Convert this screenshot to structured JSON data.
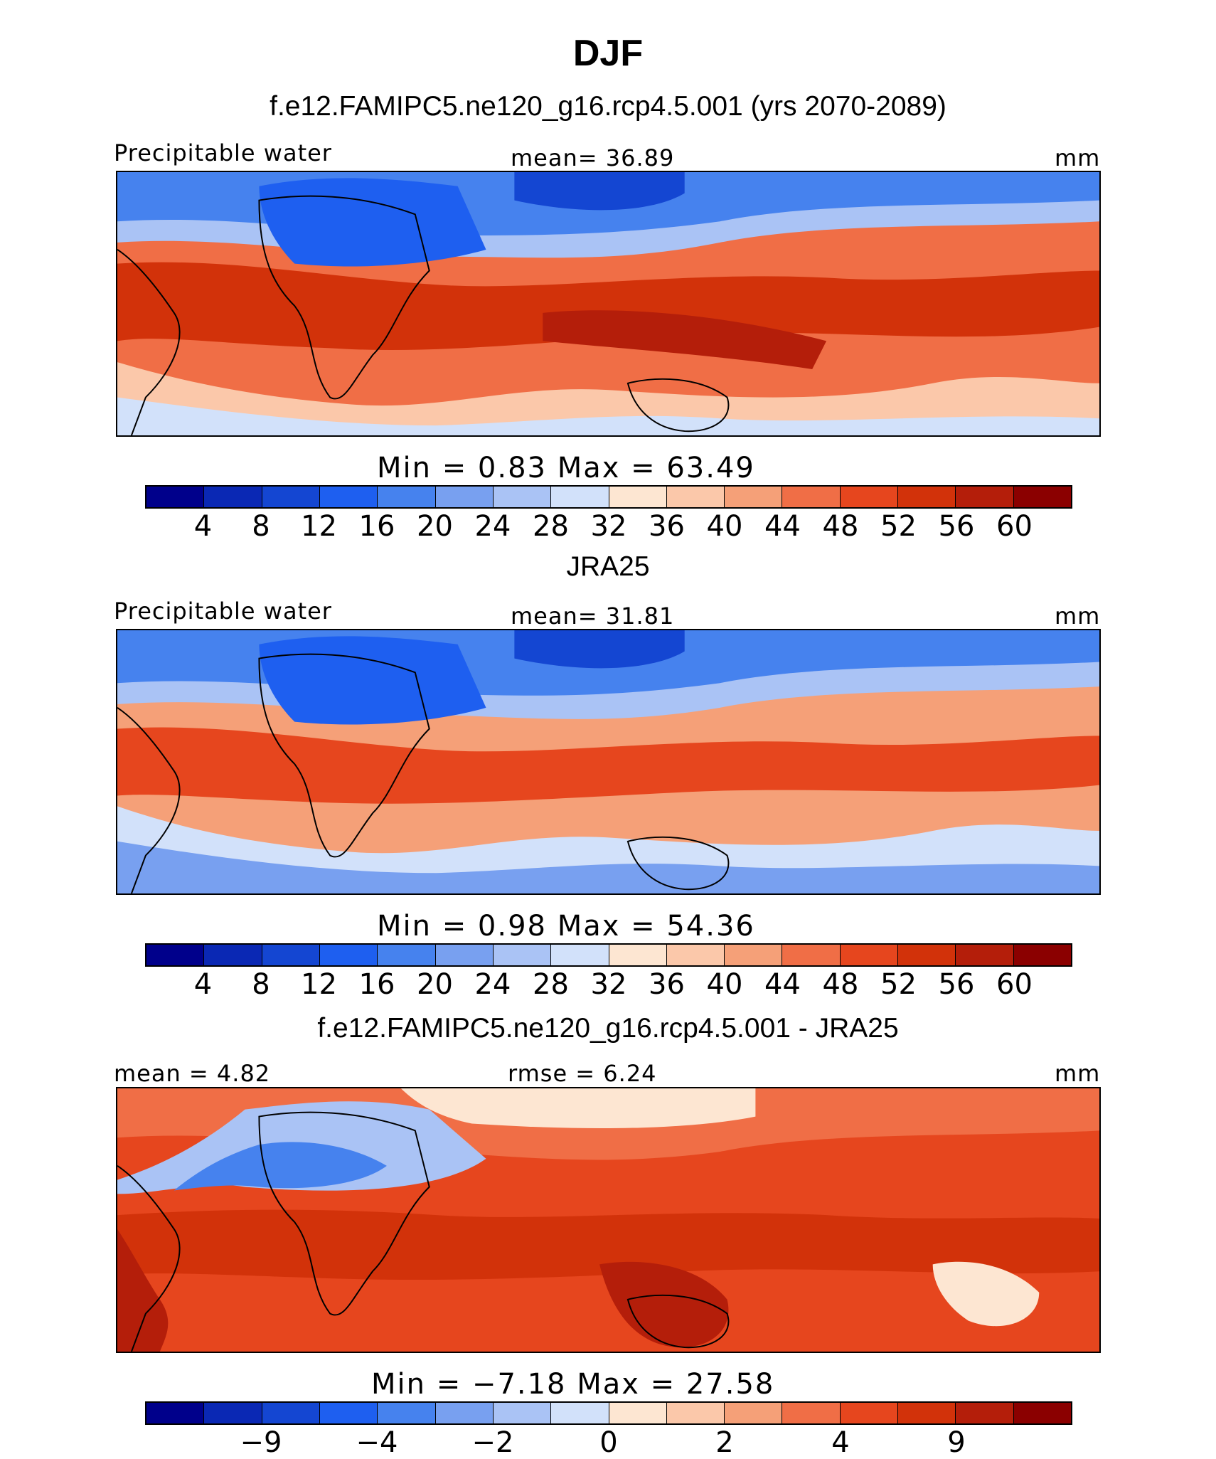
{
  "title": "DJF",
  "panels": [
    {
      "case_title": "f.e12.FAMIPC5.ne120_g16.rcp4.5.001 (yrs 2070-2089)",
      "left_label": "Precipitable water",
      "center_label": "mean=   36.89",
      "units": "mm",
      "minmax": "Min  =    0.83  Max  =   63.49"
    },
    {
      "case_title": "JRA25",
      "left_label": "Precipitable water",
      "center_label": "mean=   31.81",
      "units": "mm",
      "minmax": "Min  =    0.98  Max  =   54.36"
    },
    {
      "case_title": "f.e12.FAMIPC5.ne120_g16.rcp4.5.001 - JRA25",
      "left_label": "mean  =    4.82",
      "center_label": "rmse  =    6.24",
      "units": "mm",
      "minmax": "Min  =  −7.18  Max  =   27.58"
    }
  ],
  "colorbar_colors": [
    "#00008b",
    "#0a28b4",
    "#1446d2",
    "#1e5ff0",
    "#4682ee",
    "#78a0f0",
    "#aac3f5",
    "#d2e1fa",
    "#fde6d2",
    "#fbc8aa",
    "#f5a078",
    "#f06e46",
    "#e6461e",
    "#d2320a",
    "#b41e0a",
    "#8b0000"
  ],
  "abs_ticks": [
    "4",
    "8",
    "12",
    "16",
    "20",
    "24",
    "28",
    "32",
    "36",
    "40",
    "44",
    "48",
    "52",
    "56",
    "60"
  ],
  "diff_ticks": [
    "−9",
    "−4",
    "−2",
    "0",
    "2",
    "4",
    "9"
  ],
  "map_colors": {
    "ocean_lo": "#78a0f0",
    "mid": "#fde6d2",
    "hi": "#e6461e",
    "vhi": "#b41e0a"
  }
}
